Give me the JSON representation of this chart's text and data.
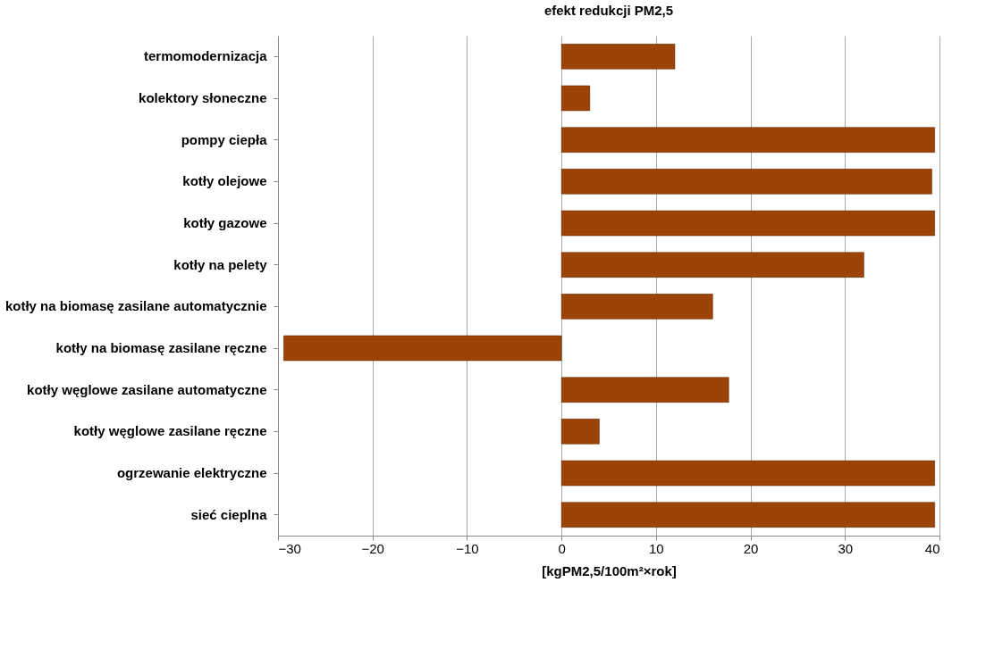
{
  "chart_data": {
    "type": "bar",
    "orientation": "horizontal",
    "title": "efekt redukcji PM2,5",
    "xlabel": "[kgPM2,5/100m²×rok]",
    "categories": [
      "termomodernizacja",
      "kolektory słoneczne",
      "pompy ciepła",
      "kotły olejowe",
      "kotły gazowe",
      "kotły na pelety",
      "kotły na biomasę zasilane automatycznie",
      "kotły na biomasę zasilane ręczne",
      "kotły węglowe zasilane automatyczne",
      "kotły węglowe zasilane ręczne",
      "ogrzewanie elektryczne",
      "sieć cieplna"
    ],
    "values": [
      12,
      3,
      39.5,
      39.2,
      39.5,
      32,
      16,
      -29.4,
      17.7,
      4,
      39.5,
      39.5
    ],
    "color": "#9c4307",
    "xlim": [
      -30,
      40
    ],
    "xticks": [
      -30,
      -20,
      -10,
      0,
      10,
      20,
      30,
      40
    ],
    "grid": "x"
  }
}
